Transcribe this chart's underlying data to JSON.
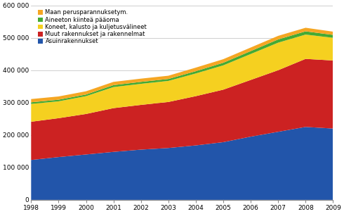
{
  "years": [
    1998,
    1999,
    2000,
    2001,
    2002,
    2003,
    2004,
    2005,
    2006,
    2007,
    2008,
    2009
  ],
  "Asuinrakennukset": [
    123000,
    132000,
    140000,
    148000,
    155000,
    160000,
    168000,
    178000,
    195000,
    210000,
    225000,
    220000
  ],
  "Muut rakennukset ja rakennelmat": [
    118000,
    120000,
    125000,
    135000,
    138000,
    142000,
    152000,
    162000,
    175000,
    190000,
    210000,
    210000
  ],
  "Koneet, kalusto ja kuljetusvalineet": [
    55000,
    52000,
    55000,
    65000,
    65000,
    65000,
    70000,
    75000,
    80000,
    85000,
    75000,
    70000
  ],
  "Aineeton kiintea paaoma": [
    5000,
    5000,
    5000,
    6000,
    6000,
    6000,
    7000,
    8000,
    9000,
    10000,
    10000,
    9000
  ],
  "Maan perusparannuksetym": [
    10000,
    10000,
    10000,
    10000,
    10000,
    10000,
    11000,
    11000,
    11000,
    11000,
    11000,
    10000
  ],
  "color_asuinrakennukset": "#2255aa",
  "color_muut": "#cc2222",
  "color_koneet": "#f5d020",
  "color_aineeton": "#44aa33",
  "color_maan": "#f5a623",
  "ylim": [
    0,
    600000
  ],
  "yticks": [
    0,
    100000,
    200000,
    300000,
    400000,
    500000,
    600000
  ],
  "ytick_labels": [
    "0",
    "100 000",
    "200 000",
    "300 000",
    "400 000",
    "500 000",
    "600 000"
  ],
  "legend_entries": [
    {
      "label": "Maan perusparannuksetym.",
      "color": "#f5a623"
    },
    {
      "label": "Aineeton kiinteä pääoma",
      "color": "#44aa33"
    },
    {
      "label": "Koneet, kalusto ja kuljetusvälineet",
      "color": "#f5d020"
    },
    {
      "label": "Muut rakennukset ja rakennelmat",
      "color": "#cc2222"
    },
    {
      "label": "Asuinrakennukset",
      "color": "#2255aa"
    }
  ],
  "background_color": "#ffffff"
}
